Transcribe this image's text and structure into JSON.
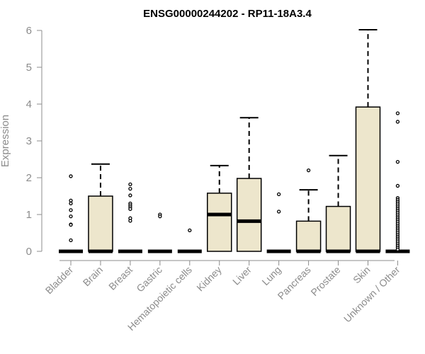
{
  "chart_data": {
    "type": "boxplot",
    "title": "ENSG00000244202 - RP11-18A3.4",
    "xlabel": "",
    "ylabel": "Expression",
    "ylim": [
      0,
      6
    ],
    "yticks": [
      0,
      1,
      2,
      3,
      4,
      5,
      6
    ],
    "grid": false,
    "colors": {
      "box_fill": "#ede6cc",
      "box_stroke": "#000000",
      "axis": "#8c8c8c",
      "outlier_stroke": "#000000"
    },
    "categories": [
      "Bladder",
      "Brain",
      "Breast",
      "Gastric",
      "Hematopoietic cells",
      "Kidney",
      "Liver",
      "Lung",
      "Pancreas",
      "Prostate",
      "Skin",
      "Unknown / Other"
    ],
    "boxes": [
      {
        "category": "Bladder",
        "q1": 0,
        "median": 0,
        "q3": 0,
        "whisker_low": 0,
        "whisker_high": 0,
        "outliers": [
          2.04,
          1.38,
          1.3,
          1.12,
          0.95,
          0.73,
          0.72,
          0.3
        ]
      },
      {
        "category": "Brain",
        "q1": 0,
        "median": 0,
        "q3": 1.5,
        "whisker_low": 0,
        "whisker_high": 2.37,
        "outliers": []
      },
      {
        "category": "Breast",
        "q1": 0,
        "median": 0,
        "q3": 0,
        "whisker_low": 0,
        "whisker_high": 0,
        "outliers": [
          1.82,
          1.7,
          1.52,
          1.3,
          1.25,
          1.2,
          1.15,
          0.9,
          0.83
        ]
      },
      {
        "category": "Gastric",
        "q1": 0,
        "median": 0,
        "q3": 0,
        "whisker_low": 0,
        "whisker_high": 0,
        "outliers": [
          1.0,
          0.95
        ]
      },
      {
        "category": "Hematopoietic cells",
        "q1": 0,
        "median": 0,
        "q3": 0,
        "whisker_low": 0,
        "whisker_high": 0,
        "outliers": [
          0.57
        ]
      },
      {
        "category": "Kidney",
        "q1": 0,
        "median": 1.0,
        "q3": 1.58,
        "whisker_low": 0,
        "whisker_high": 2.33,
        "outliers": []
      },
      {
        "category": "Liver",
        "q1": 0,
        "median": 0.82,
        "q3": 1.98,
        "whisker_low": 0,
        "whisker_high": 3.63,
        "outliers": []
      },
      {
        "category": "Lung",
        "q1": 0,
        "median": 0,
        "q3": 0,
        "whisker_low": 0,
        "whisker_high": 0,
        "outliers": [
          1.55,
          1.08
        ]
      },
      {
        "category": "Pancreas",
        "q1": 0,
        "median": 0,
        "q3": 0.82,
        "whisker_low": 0,
        "whisker_high": 1.67,
        "outliers": [
          2.2
        ]
      },
      {
        "category": "Prostate",
        "q1": 0,
        "median": 0,
        "q3": 1.22,
        "whisker_low": 0,
        "whisker_high": 2.6,
        "outliers": []
      },
      {
        "category": "Skin",
        "q1": 0,
        "median": 0,
        "q3": 3.92,
        "whisker_low": 0,
        "whisker_high": 6.02,
        "outliers": []
      },
      {
        "category": "Unknown / Other",
        "q1": 0,
        "median": 0,
        "q3": 0,
        "whisker_low": 0,
        "whisker_high": 0,
        "outliers": [
          3.75,
          3.52,
          2.43,
          1.78,
          1.45,
          1.4,
          1.35,
          1.3,
          1.25,
          1.2,
          1.15,
          1.1,
          1.05,
          1.0,
          0.95,
          0.9,
          0.85,
          0.8,
          0.75,
          0.7,
          0.65,
          0.6,
          0.55,
          0.5,
          0.45,
          0.4,
          0.35,
          0.3,
          0.25,
          0.2,
          0.15,
          0.1,
          0.05
        ]
      }
    ]
  }
}
